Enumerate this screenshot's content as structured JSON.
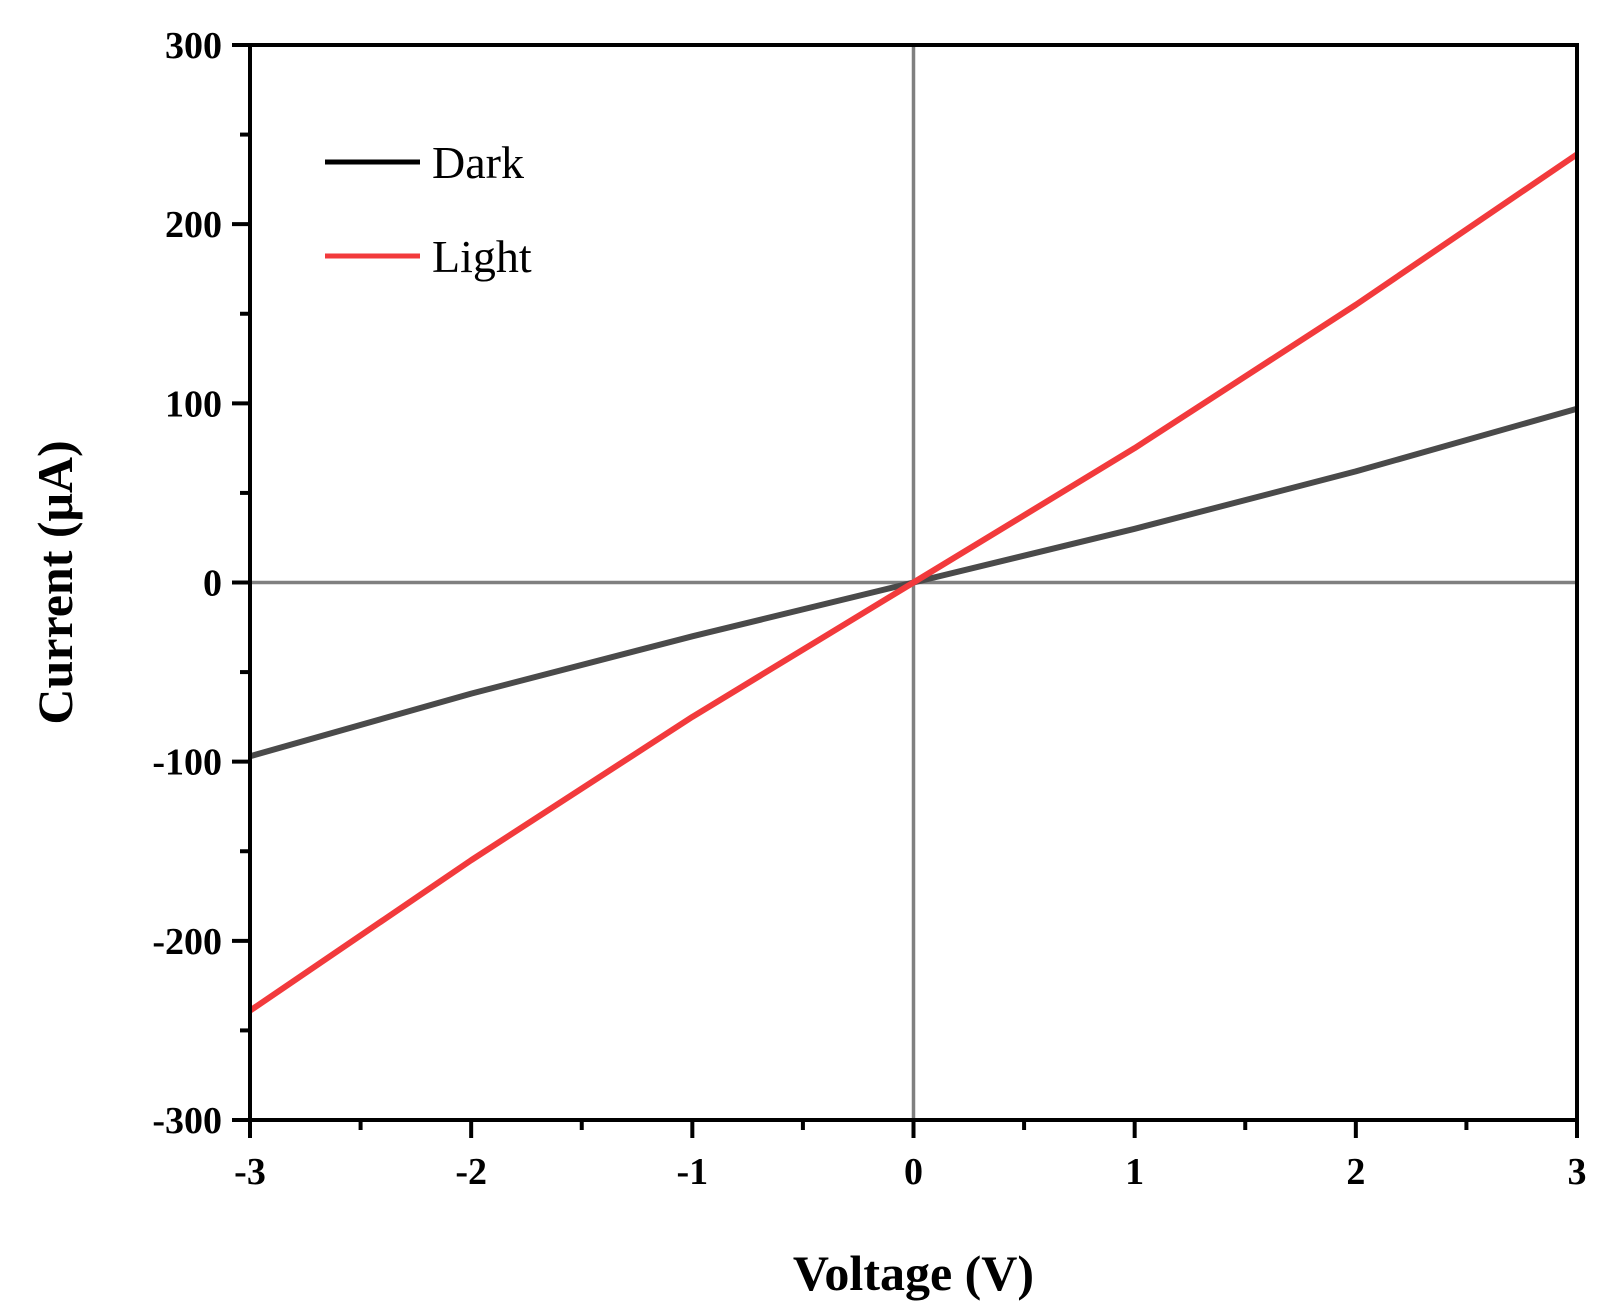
{
  "chart_data": {
    "type": "line",
    "xlabel": "Voltage (V)",
    "ylabel": "Current (μA)",
    "xlim": [
      -3,
      3
    ],
    "ylim": [
      -300,
      300
    ],
    "x_ticks": [
      "-3",
      "-2",
      "-1",
      "0",
      "1",
      "2",
      "3"
    ],
    "y_ticks": [
      "-300",
      "-200",
      "-100",
      "0",
      "100",
      "200",
      "300"
    ],
    "zero_lines": true,
    "grid": false,
    "legend_position": "top-left",
    "series": [
      {
        "name": "Dark",
        "color": "#4a4a4a",
        "legend_color": "#000000",
        "x": [
          -3,
          -2,
          -1,
          0,
          1,
          2,
          3
        ],
        "y": [
          -97,
          -62,
          -30,
          0,
          30,
          62,
          97
        ]
      },
      {
        "name": "Light",
        "color": "#f23a3c",
        "legend_color": "#f23a3c",
        "x": [
          -3,
          -2,
          -1,
          0,
          1,
          2,
          3
        ],
        "y": [
          -239,
          -155,
          -75,
          0,
          75,
          155,
          239
        ]
      }
    ]
  }
}
